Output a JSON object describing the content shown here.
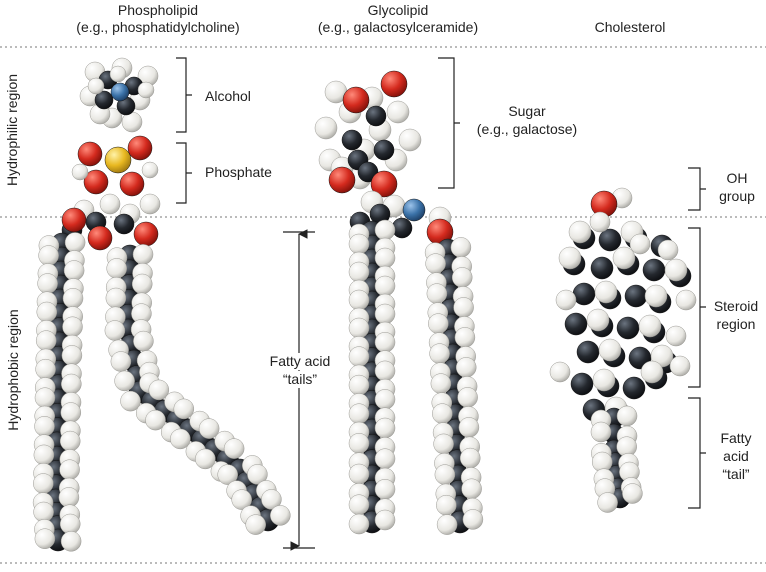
{
  "columns": {
    "phospholipid": {
      "title": "Phospholipid",
      "subtitle": "(e.g., phosphatidylcholine)"
    },
    "glycolipid": {
      "title": "Glycolipid",
      "subtitle": "(e.g., galactosylceramide)"
    },
    "cholesterol": {
      "title": "Cholesterol"
    }
  },
  "regions": {
    "hydrophilic": "Hydrophilic region",
    "hydrophobic": "Hydrophobic region"
  },
  "annotations": {
    "alcohol": "Alcohol",
    "phosphate": "Phosphate",
    "sugar_line1": "Sugar",
    "sugar_line2": "(e.g., galactose)",
    "fatty_tails_line1": "Fatty acid",
    "fatty_tails_line2": "“tails”",
    "oh_line1": "OH",
    "oh_line2": "group",
    "steroid_line1": "Steroid",
    "steroid_line2": "region",
    "fatty_tail_line1": "Fatty",
    "fatty_tail_line2": "acid",
    "fatty_tail_line3": "“tail”"
  },
  "atom_colors": {
    "carbon": "#1c1f24",
    "hydrogen": "#ecebe6",
    "oxygen": "#d42a1e",
    "nitrogen": "#3b72a8",
    "phosphorus": "#e8b820"
  }
}
